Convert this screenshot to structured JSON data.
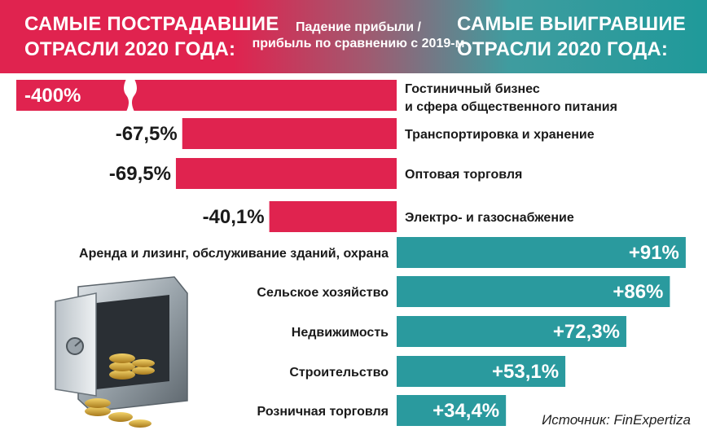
{
  "header": {
    "left_title_line1": "САМЫЕ ПОСТРАДАВШИЕ",
    "left_title_line2": "ОТРАСЛИ 2020 ГОДА:",
    "center_line1": "Падение прибыли /",
    "center_line2": "прибыль по сравнению с 2019-м",
    "right_title_line1": "САМЫЕ ВЫИГРАВШИЕ",
    "right_title_line2": "ОТРАСЛИ 2020 ГОДА:"
  },
  "source": "Источник: FinExpertiza",
  "colors": {
    "loss": "#e0234f",
    "gain": "#2a9a9e",
    "label": "#1a1a1a",
    "value_dark": "#1a1a1a",
    "value_light": "#ffffff"
  },
  "chart_data": {
    "type": "bar",
    "losers": [
      {
        "category_line1": "Гостиничный бизнес",
        "category_line2": "и сфера общественного питания",
        "value": -400,
        "label": "-400%",
        "axis_break": true
      },
      {
        "category_line1": "Транспортировка и хранение",
        "value": -67.5,
        "label": "-67,5%"
      },
      {
        "category_line1": "Оптовая торговля",
        "value": -69.5,
        "label": "-69,5%"
      },
      {
        "category_line1": "Электро- и газоснабжение",
        "value": -40.1,
        "label": "-40,1%"
      }
    ],
    "winners": [
      {
        "category": "Аренда и лизинг, обслуживание зданий, охрана",
        "value": 91,
        "label": "+91%"
      },
      {
        "category": "Сельское хозяйство",
        "value": 86,
        "label": "+86%"
      },
      {
        "category": "Недвижимость",
        "value": 72.3,
        "label": "+72,3%"
      },
      {
        "category": "Строительство",
        "value": 53.1,
        "label": "+53,1%"
      },
      {
        "category": "Розничная торговля",
        "value": 34.4,
        "label": "+34,4%"
      }
    ]
  }
}
